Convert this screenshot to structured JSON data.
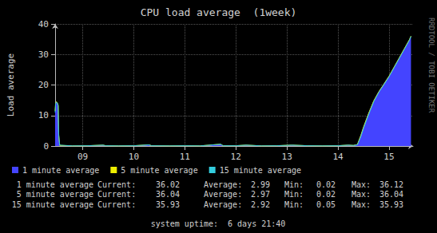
{
  "chart_data": {
    "type": "area",
    "title": "CPU load average  (1week)",
    "y_label": "Load average",
    "watermark": "RRDTOOL / TOBI OETIKER",
    "footer": "system uptime:  6 days 21:40",
    "stat_labels": [
      "Current:",
      "Average:",
      "Min:",
      "Max:"
    ],
    "x": [
      8.46,
      8.47,
      8.48,
      8.5,
      8.52,
      8.53,
      8.55,
      8.8,
      9.1,
      9.4,
      9.45,
      9.7,
      10.0,
      10.3,
      10.35,
      10.7,
      11.0,
      11.3,
      11.7,
      11.75,
      12.0,
      12.2,
      12.5,
      12.8,
      13.1,
      13.4,
      13.7,
      14.0,
      14.2,
      14.3,
      14.38,
      14.45,
      14.5,
      14.6,
      14.7,
      14.8,
      14.9,
      15.0,
      15.1,
      15.2,
      15.3,
      15.4,
      15.43
    ],
    "xlim": [
      8.46,
      15.47
    ],
    "xticks": [
      {
        "value": 9,
        "label": "09"
      },
      {
        "value": 10,
        "label": "10"
      },
      {
        "value": 11,
        "label": "11"
      },
      {
        "value": 12,
        "label": "12"
      },
      {
        "value": 13,
        "label": "13"
      },
      {
        "value": 14,
        "label": "14"
      },
      {
        "value": 15,
        "label": "15"
      }
    ],
    "ylim": [
      0,
      40
    ],
    "yticks": [
      0,
      10,
      20,
      30,
      40
    ],
    "grid": true,
    "legend": "bottom",
    "series": [
      {
        "name": "1 minute average",
        "type": "area",
        "color": "#4444ff",
        "values": [
          12,
          14.5,
          14.6,
          14.3,
          13,
          3,
          0.1,
          0.05,
          0.1,
          0.3,
          0.1,
          0.05,
          0.1,
          0.4,
          0.1,
          0.05,
          0.1,
          0.05,
          0.6,
          0.1,
          0.1,
          0.3,
          0.05,
          0.1,
          0.3,
          0.1,
          0.05,
          0.1,
          0.3,
          0.2,
          0.6,
          4,
          6.5,
          11,
          15,
          18,
          20.5,
          23,
          26,
          29,
          32,
          35,
          36.02
        ],
        "stats": {
          "current": 36.02,
          "average": 2.99,
          "min": 0.02,
          "max": 36.12
        }
      },
      {
        "name": "5 minute average",
        "type": "line",
        "color": "#eeee00",
        "values": [
          11.5,
          14.3,
          14.5,
          14.3,
          13.2,
          3.5,
          0.2,
          0.05,
          0.1,
          0.3,
          0.1,
          0.05,
          0.1,
          0.4,
          0.1,
          0.05,
          0.1,
          0.05,
          0.6,
          0.1,
          0.1,
          0.3,
          0.05,
          0.1,
          0.3,
          0.1,
          0.05,
          0.1,
          0.3,
          0.2,
          0.5,
          3.6,
          6.2,
          10.7,
          14.8,
          17.8,
          20.3,
          22.9,
          25.9,
          28.9,
          31.9,
          34.9,
          36.04
        ],
        "stats": {
          "current": 36.04,
          "average": 2.97,
          "min": 0.02,
          "max": 36.04
        }
      },
      {
        "name": "15 minute average",
        "type": "line",
        "color": "#33ccdd",
        "values": [
          11,
          14,
          14.3,
          14.2,
          13.4,
          4,
          0.3,
          0.05,
          0.1,
          0.3,
          0.1,
          0.05,
          0.1,
          0.4,
          0.1,
          0.05,
          0.1,
          0.05,
          0.6,
          0.1,
          0.1,
          0.3,
          0.05,
          0.1,
          0.3,
          0.1,
          0.05,
          0.1,
          0.3,
          0.2,
          0.4,
          3.2,
          5.8,
          10.3,
          14.5,
          17.6,
          20.1,
          22.7,
          25.7,
          28.7,
          31.7,
          34.7,
          35.93
        ],
        "stats": {
          "current": 35.93,
          "average": 2.92,
          "min": 0.05,
          "max": 35.93
        }
      }
    ]
  }
}
